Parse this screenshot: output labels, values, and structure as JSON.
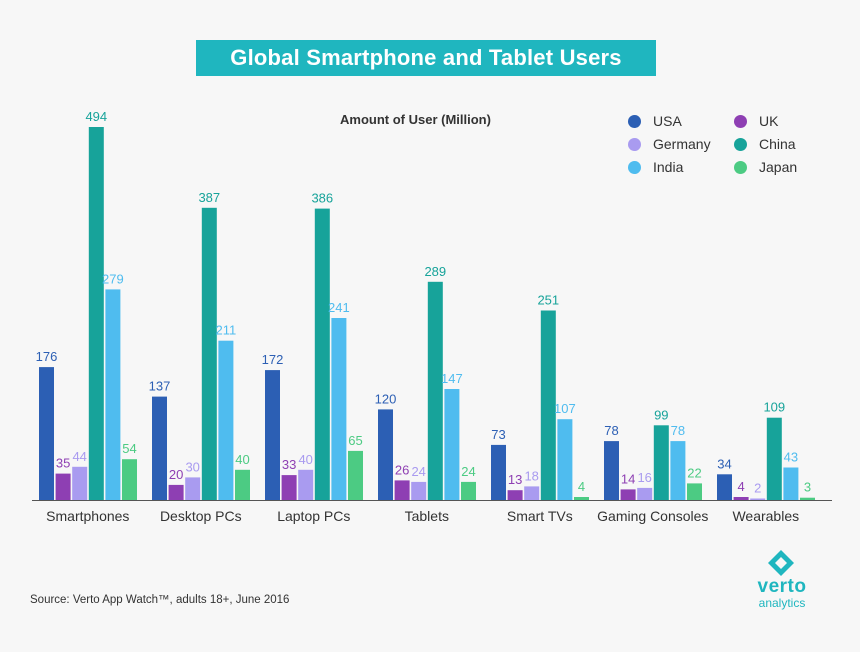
{
  "chart_data": {
    "type": "bar",
    "title": "Global Smartphone and Tablet Users",
    "ylabel": "Amount of User (Million)",
    "ylim": [
      0,
      520
    ],
    "grid": false,
    "legend_position": "top-right",
    "categories": [
      "Smartphones",
      "Desktop PCs",
      "Laptop PCs",
      "Tablets",
      "Smart TVs",
      "Gaming Consoles",
      "Wearables"
    ],
    "series": [
      {
        "name": "USA",
        "color": "#2c5fb4",
        "values": [
          176,
          137,
          172,
          120,
          73,
          78,
          34
        ]
      },
      {
        "name": "UK",
        "color": "#8e3fb3",
        "values": [
          35,
          20,
          33,
          26,
          13,
          14,
          4
        ]
      },
      {
        "name": "Germany",
        "color": "#a99bf0",
        "values": [
          44,
          30,
          40,
          24,
          18,
          16,
          2
        ]
      },
      {
        "name": "China",
        "color": "#17a39a",
        "values": [
          494,
          387,
          386,
          289,
          251,
          99,
          109
        ]
      },
      {
        "name": "India",
        "color": "#4fbcef",
        "values": [
          279,
          211,
          241,
          147,
          107,
          78,
          43
        ]
      },
      {
        "name": "Japan",
        "color": "#4ccb83",
        "values": [
          54,
          40,
          65,
          24,
          4,
          22,
          3
        ]
      }
    ]
  },
  "legend": [
    {
      "label": "USA",
      "color": "#2c5fb4"
    },
    {
      "label": "UK",
      "color": "#8e3fb3"
    },
    {
      "label": "Germany",
      "color": "#a99bf0"
    },
    {
      "label": "China",
      "color": "#17a39a"
    },
    {
      "label": "India",
      "color": "#4fbcef"
    },
    {
      "label": "Japan",
      "color": "#4ccb83"
    }
  ],
  "source": "Source: Verto App Watch™, adults 18+, June 2016",
  "logo": {
    "line1": "verto",
    "line2": "analytics",
    "icon": "verto-diamond-icon"
  },
  "label_colors": {
    "USA": "#2c5fb4",
    "UK": "#8e3fb3",
    "Germany": "#a99bf0",
    "China": "#17a39a",
    "India": "#4fbcef",
    "Japan": "#4ccb83"
  }
}
